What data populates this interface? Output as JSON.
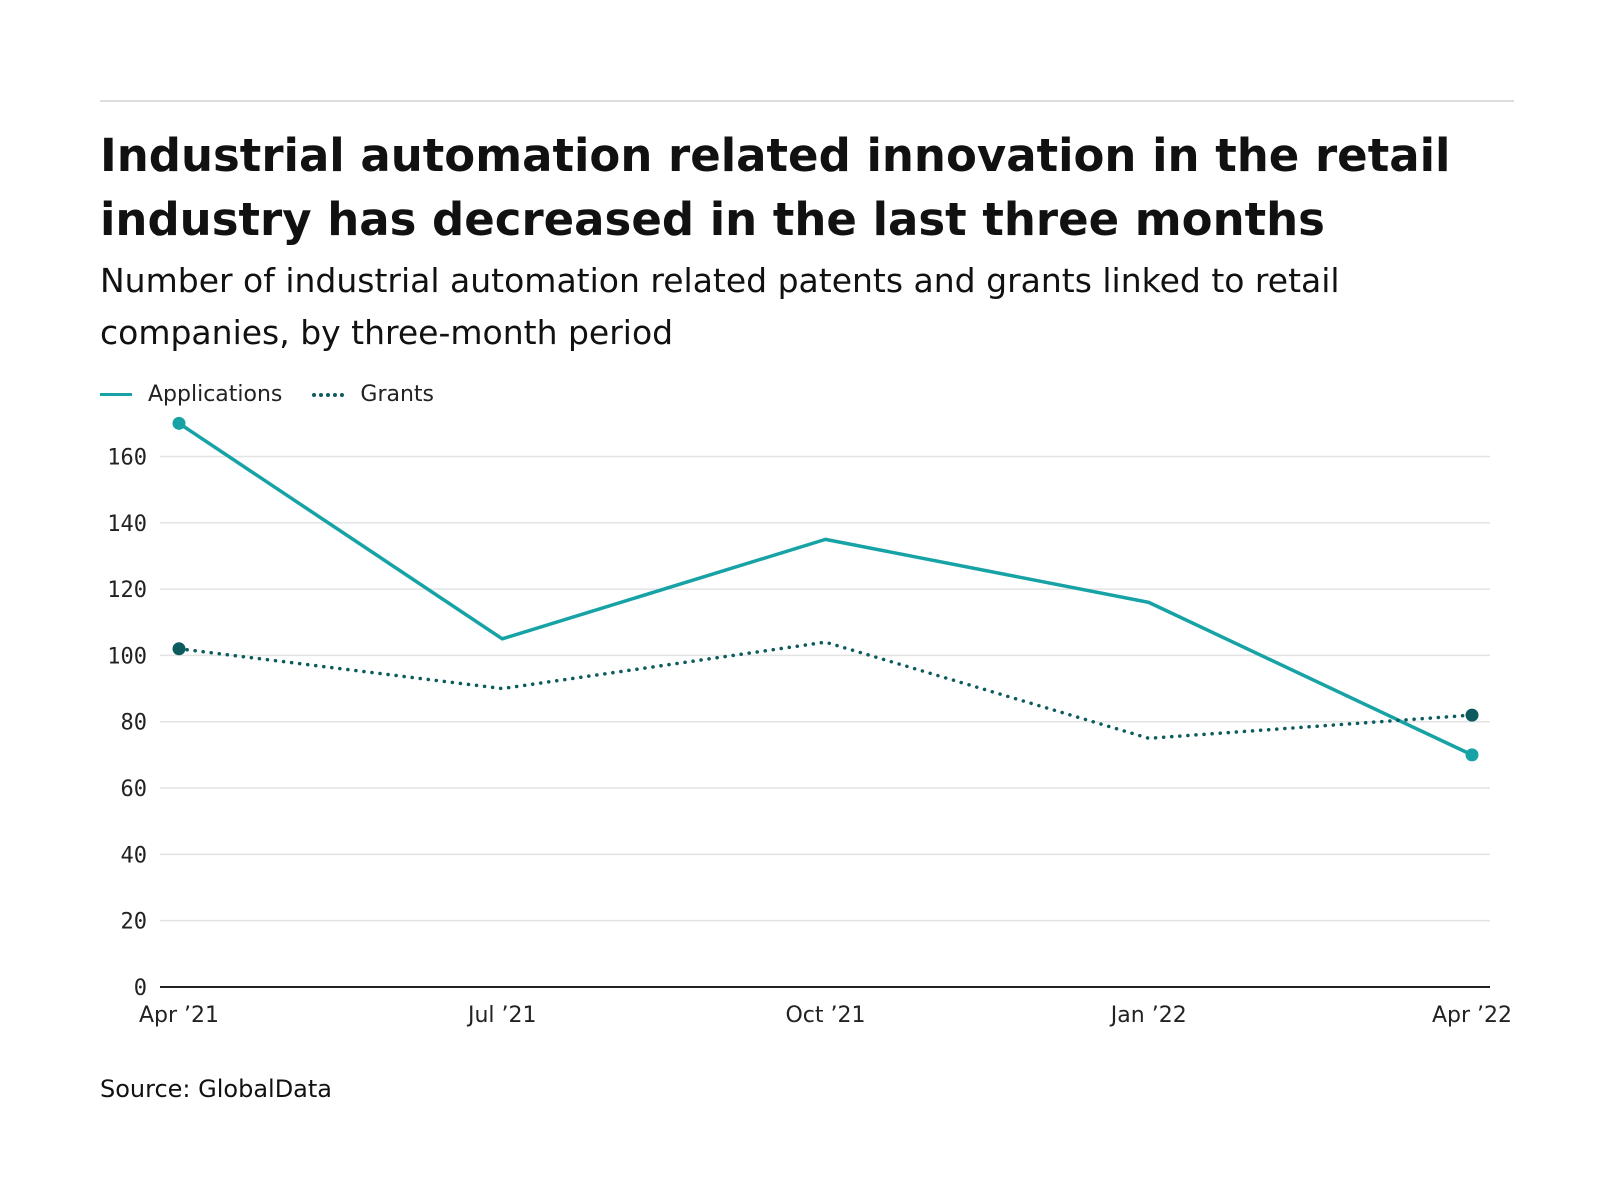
{
  "header": {
    "title": "Industrial automation related innovation in the retail industry has decreased in the last three months",
    "subtitle": "Number of industrial automation related patents and grants linked to retail companies, by three-month period"
  },
  "legend": [
    {
      "label": "Applications",
      "style": "solid",
      "color": "#17a3a5"
    },
    {
      "label": "Grants",
      "style": "dotted",
      "color": "#0c5b5e"
    }
  ],
  "source": "Source: GlobalData",
  "chart_data": {
    "type": "line",
    "categories": [
      "Apr ’21",
      "Jul ’21",
      "Oct ’21",
      "Jan ’22",
      "Apr ’22"
    ],
    "series": [
      {
        "name": "Applications",
        "values": [
          170,
          105,
          135,
          116,
          70
        ],
        "color": "#17a3a5",
        "style": "solid"
      },
      {
        "name": "Grants",
        "values": [
          102,
          90,
          104,
          75,
          82
        ],
        "color": "#0c5b5e",
        "style": "dotted"
      }
    ],
    "ylim": [
      0,
      170
    ],
    "yticks": [
      0,
      20,
      40,
      60,
      80,
      100,
      120,
      140,
      160
    ],
    "grid": true,
    "legend_position": "top-left",
    "markers": "endpoints"
  }
}
